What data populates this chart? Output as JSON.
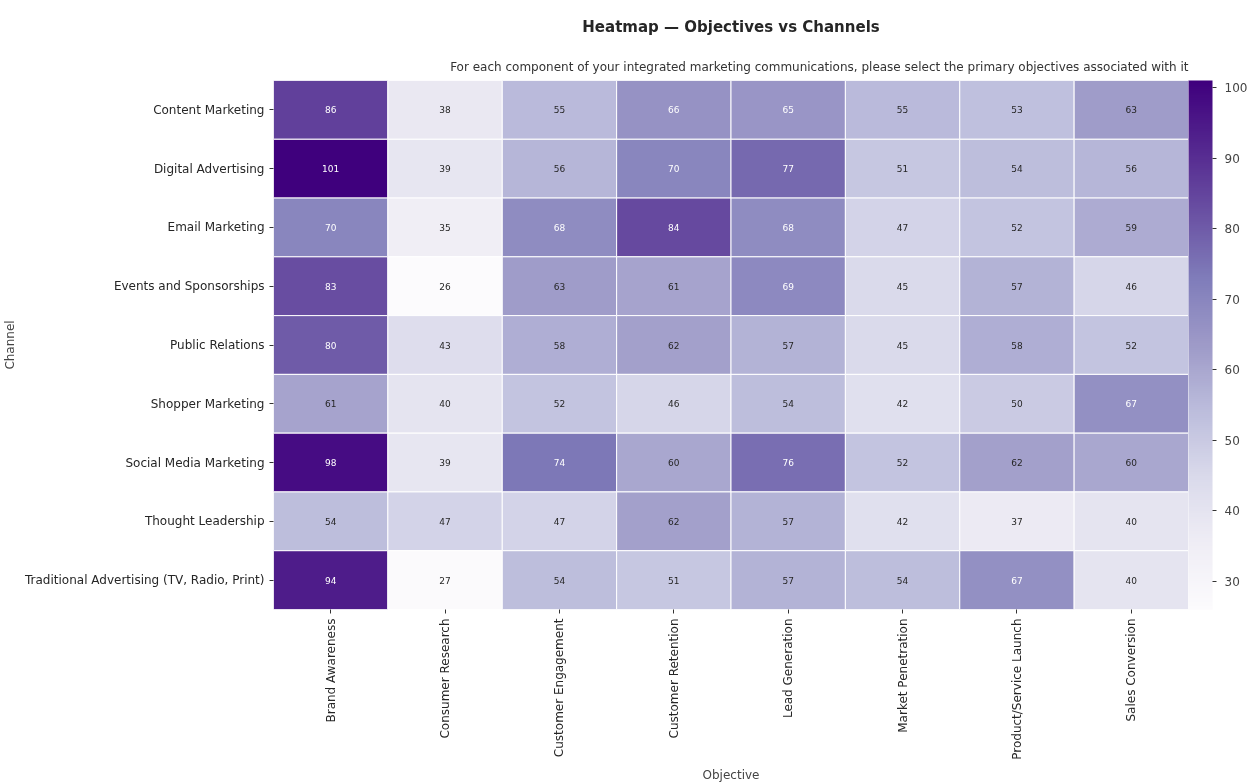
{
  "chart_data": {
    "type": "heatmap",
    "title": "Heatmap — Objectives vs Channels",
    "subtitle": "For each component of your integrated marketing communications, please select the primary objectives associated with it",
    "xlabel": "Objective",
    "ylabel": "Channel",
    "categories": [
      "Brand Awareness",
      "Consumer Research",
      "Customer Engagement",
      "Customer Retention",
      "Lead Generation",
      "Market Penetration",
      "Product/Service Launch",
      "Sales Conversion"
    ],
    "y_categories": [
      "Content Marketing",
      "Digital Advertising",
      "Email Marketing",
      "Events and Sponsorships",
      "Public Relations",
      "Shopper Marketing",
      "Social Media Marketing",
      "Thought Leadership",
      "Traditional Advertising (TV, Radio, Print)"
    ],
    "cells": [
      [
        86,
        38,
        55,
        66,
        65,
        55,
        53,
        63
      ],
      [
        101,
        39,
        56,
        70,
        77,
        51,
        54,
        56
      ],
      [
        70,
        35,
        68,
        84,
        68,
        47,
        52,
        59
      ],
      [
        83,
        26,
        63,
        61,
        69,
        45,
        57,
        46
      ],
      [
        80,
        43,
        58,
        62,
        57,
        45,
        58,
        52
      ],
      [
        61,
        40,
        52,
        46,
        54,
        42,
        50,
        67
      ],
      [
        98,
        39,
        74,
        60,
        76,
        52,
        62,
        60
      ],
      [
        54,
        47,
        47,
        62,
        57,
        42,
        37,
        40
      ],
      [
        94,
        27,
        54,
        51,
        57,
        54,
        67,
        40
      ]
    ],
    "clim": [
      26,
      101
    ],
    "cticks": [
      30,
      40,
      50,
      60,
      70,
      80,
      90,
      100
    ],
    "data_labels": true
  }
}
